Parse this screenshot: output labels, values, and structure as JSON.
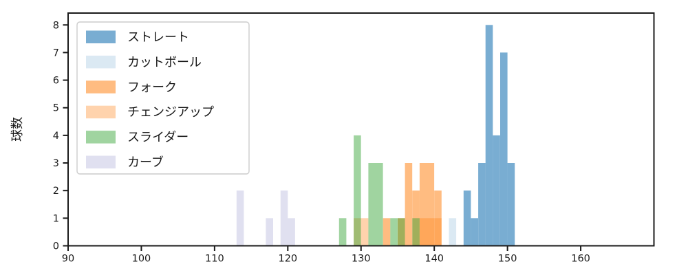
{
  "chart_data": {
    "type": "bar",
    "subtype": "histogram",
    "title": "",
    "xlabel": "",
    "ylabel": "球数",
    "xlim": [
      90,
      170
    ],
    "ylim": [
      0,
      8.43
    ],
    "xticks": [
      90,
      100,
      110,
      120,
      130,
      140,
      150,
      160
    ],
    "yticks": [
      0,
      1,
      2,
      3,
      4,
      5,
      6,
      7,
      8
    ],
    "grid": false,
    "legend_position": "upper-left",
    "bin_width": 1,
    "series": [
      {
        "key": "straight",
        "label": "ストレート",
        "color": "rgba(31,119,180,0.60)",
        "bars": [
          [
            144,
            2
          ],
          [
            145,
            1
          ],
          [
            146,
            3
          ],
          [
            147,
            8
          ],
          [
            148,
            4
          ],
          [
            149,
            7
          ],
          [
            150,
            3
          ]
        ]
      },
      {
        "key": "cutball",
        "label": "カットボール",
        "color": "rgba(31,119,180,0.16)",
        "bars": [
          [
            142,
            1
          ]
        ]
      },
      {
        "key": "fork",
        "label": "フォーク",
        "color": "rgba(255,127,14,0.52)",
        "bars": [
          [
            133,
            1
          ],
          [
            135,
            1
          ],
          [
            136,
            3
          ],
          [
            137,
            2
          ],
          [
            138,
            3
          ],
          [
            139,
            3
          ],
          [
            140,
            2
          ]
        ]
      },
      {
        "key": "changeup",
        "label": "チェンジアップ",
        "color": "rgba(255,127,14,0.34)",
        "bars": [
          [
            129,
            1
          ],
          [
            130,
            1
          ],
          [
            138,
            1
          ],
          [
            139,
            1
          ],
          [
            140,
            1
          ]
        ]
      },
      {
        "key": "slider",
        "label": "スライダー",
        "color": "rgba(44,160,44,0.45)",
        "bars": [
          [
            127,
            1
          ],
          [
            129,
            4
          ],
          [
            131,
            3
          ],
          [
            132,
            3
          ],
          [
            134,
            1
          ],
          [
            135,
            1
          ],
          [
            137,
            1
          ]
        ]
      },
      {
        "key": "curve",
        "label": "カーブ",
        "color": "rgba(130,130,195,0.25)",
        "bars": [
          [
            113,
            2
          ],
          [
            117,
            1
          ],
          [
            119,
            2
          ],
          [
            120,
            1
          ]
        ]
      }
    ]
  }
}
